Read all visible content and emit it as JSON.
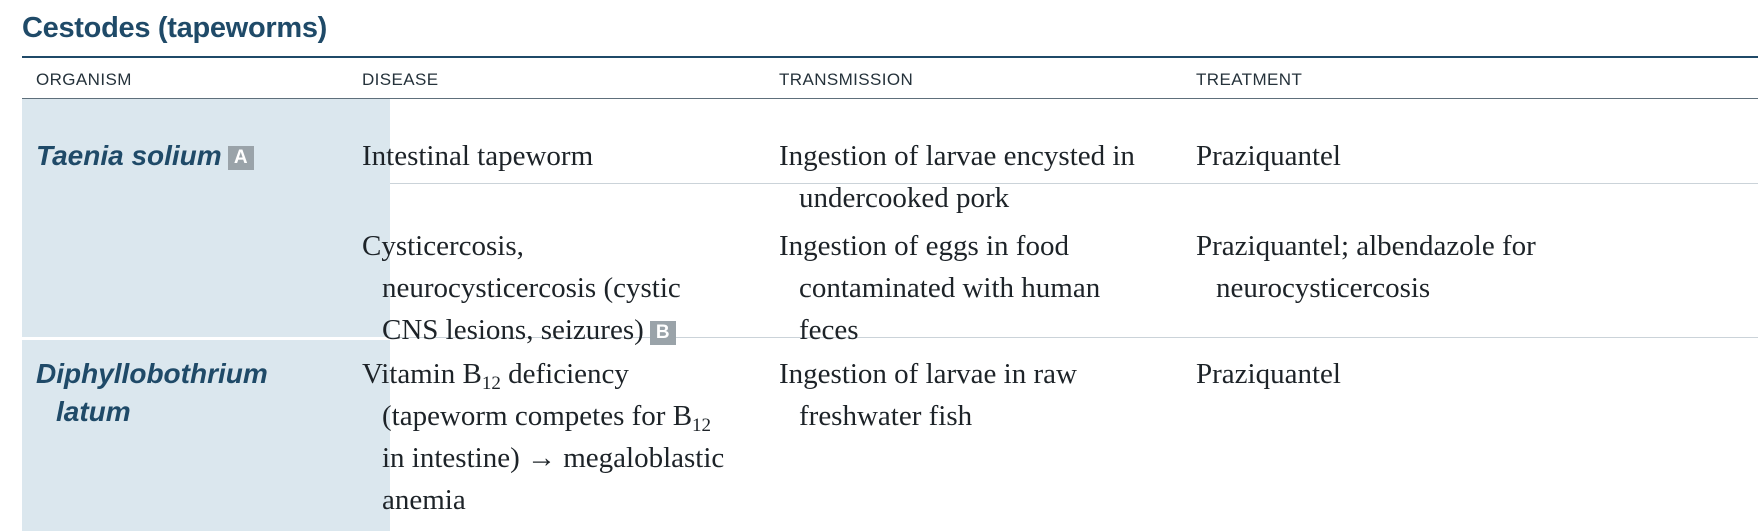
{
  "title": "Cestodes (tapeworms)",
  "headers": {
    "organism": "ORGANISM",
    "disease": "DISEASE",
    "transmission": "TRANSMISSION",
    "treatment": "TREATMENT"
  },
  "rows": [
    {
      "organism": "Taenia solium",
      "organism_badge": "A",
      "entries": [
        {
          "disease": [
            "Intestinal tapeworm"
          ],
          "transmission": [
            "Ingestion of larvae encysted in",
            "undercooked pork"
          ],
          "treatment": [
            "Praziquantel"
          ]
        },
        {
          "disease": [
            "Cysticercosis,",
            "neurocysticercosis (cystic",
            "CNS lesions, seizures)"
          ],
          "disease_badge": "B",
          "transmission": [
            "Ingestion of eggs in food",
            "contaminated with human",
            "feces"
          ],
          "treatment": [
            "Praziquantel; albendazole for",
            "neurocysticercosis"
          ]
        }
      ]
    },
    {
      "organism_lines": [
        "Diphyllobothrium",
        "latum"
      ],
      "entries": [
        {
          "disease": {
            "line1_pre": "Vitamin B",
            "line1_sub": "12",
            "line1_post": " deficiency",
            "line2_pre": "(tapeworm competes for B",
            "line2_sub": "12",
            "line3": "in intestine) → megaloblastic",
            "line4": "anemia"
          },
          "transmission": [
            "Ingestion of larvae in raw",
            "freshwater fish"
          ],
          "treatment": [
            "Praziquantel"
          ]
        }
      ]
    }
  ]
}
